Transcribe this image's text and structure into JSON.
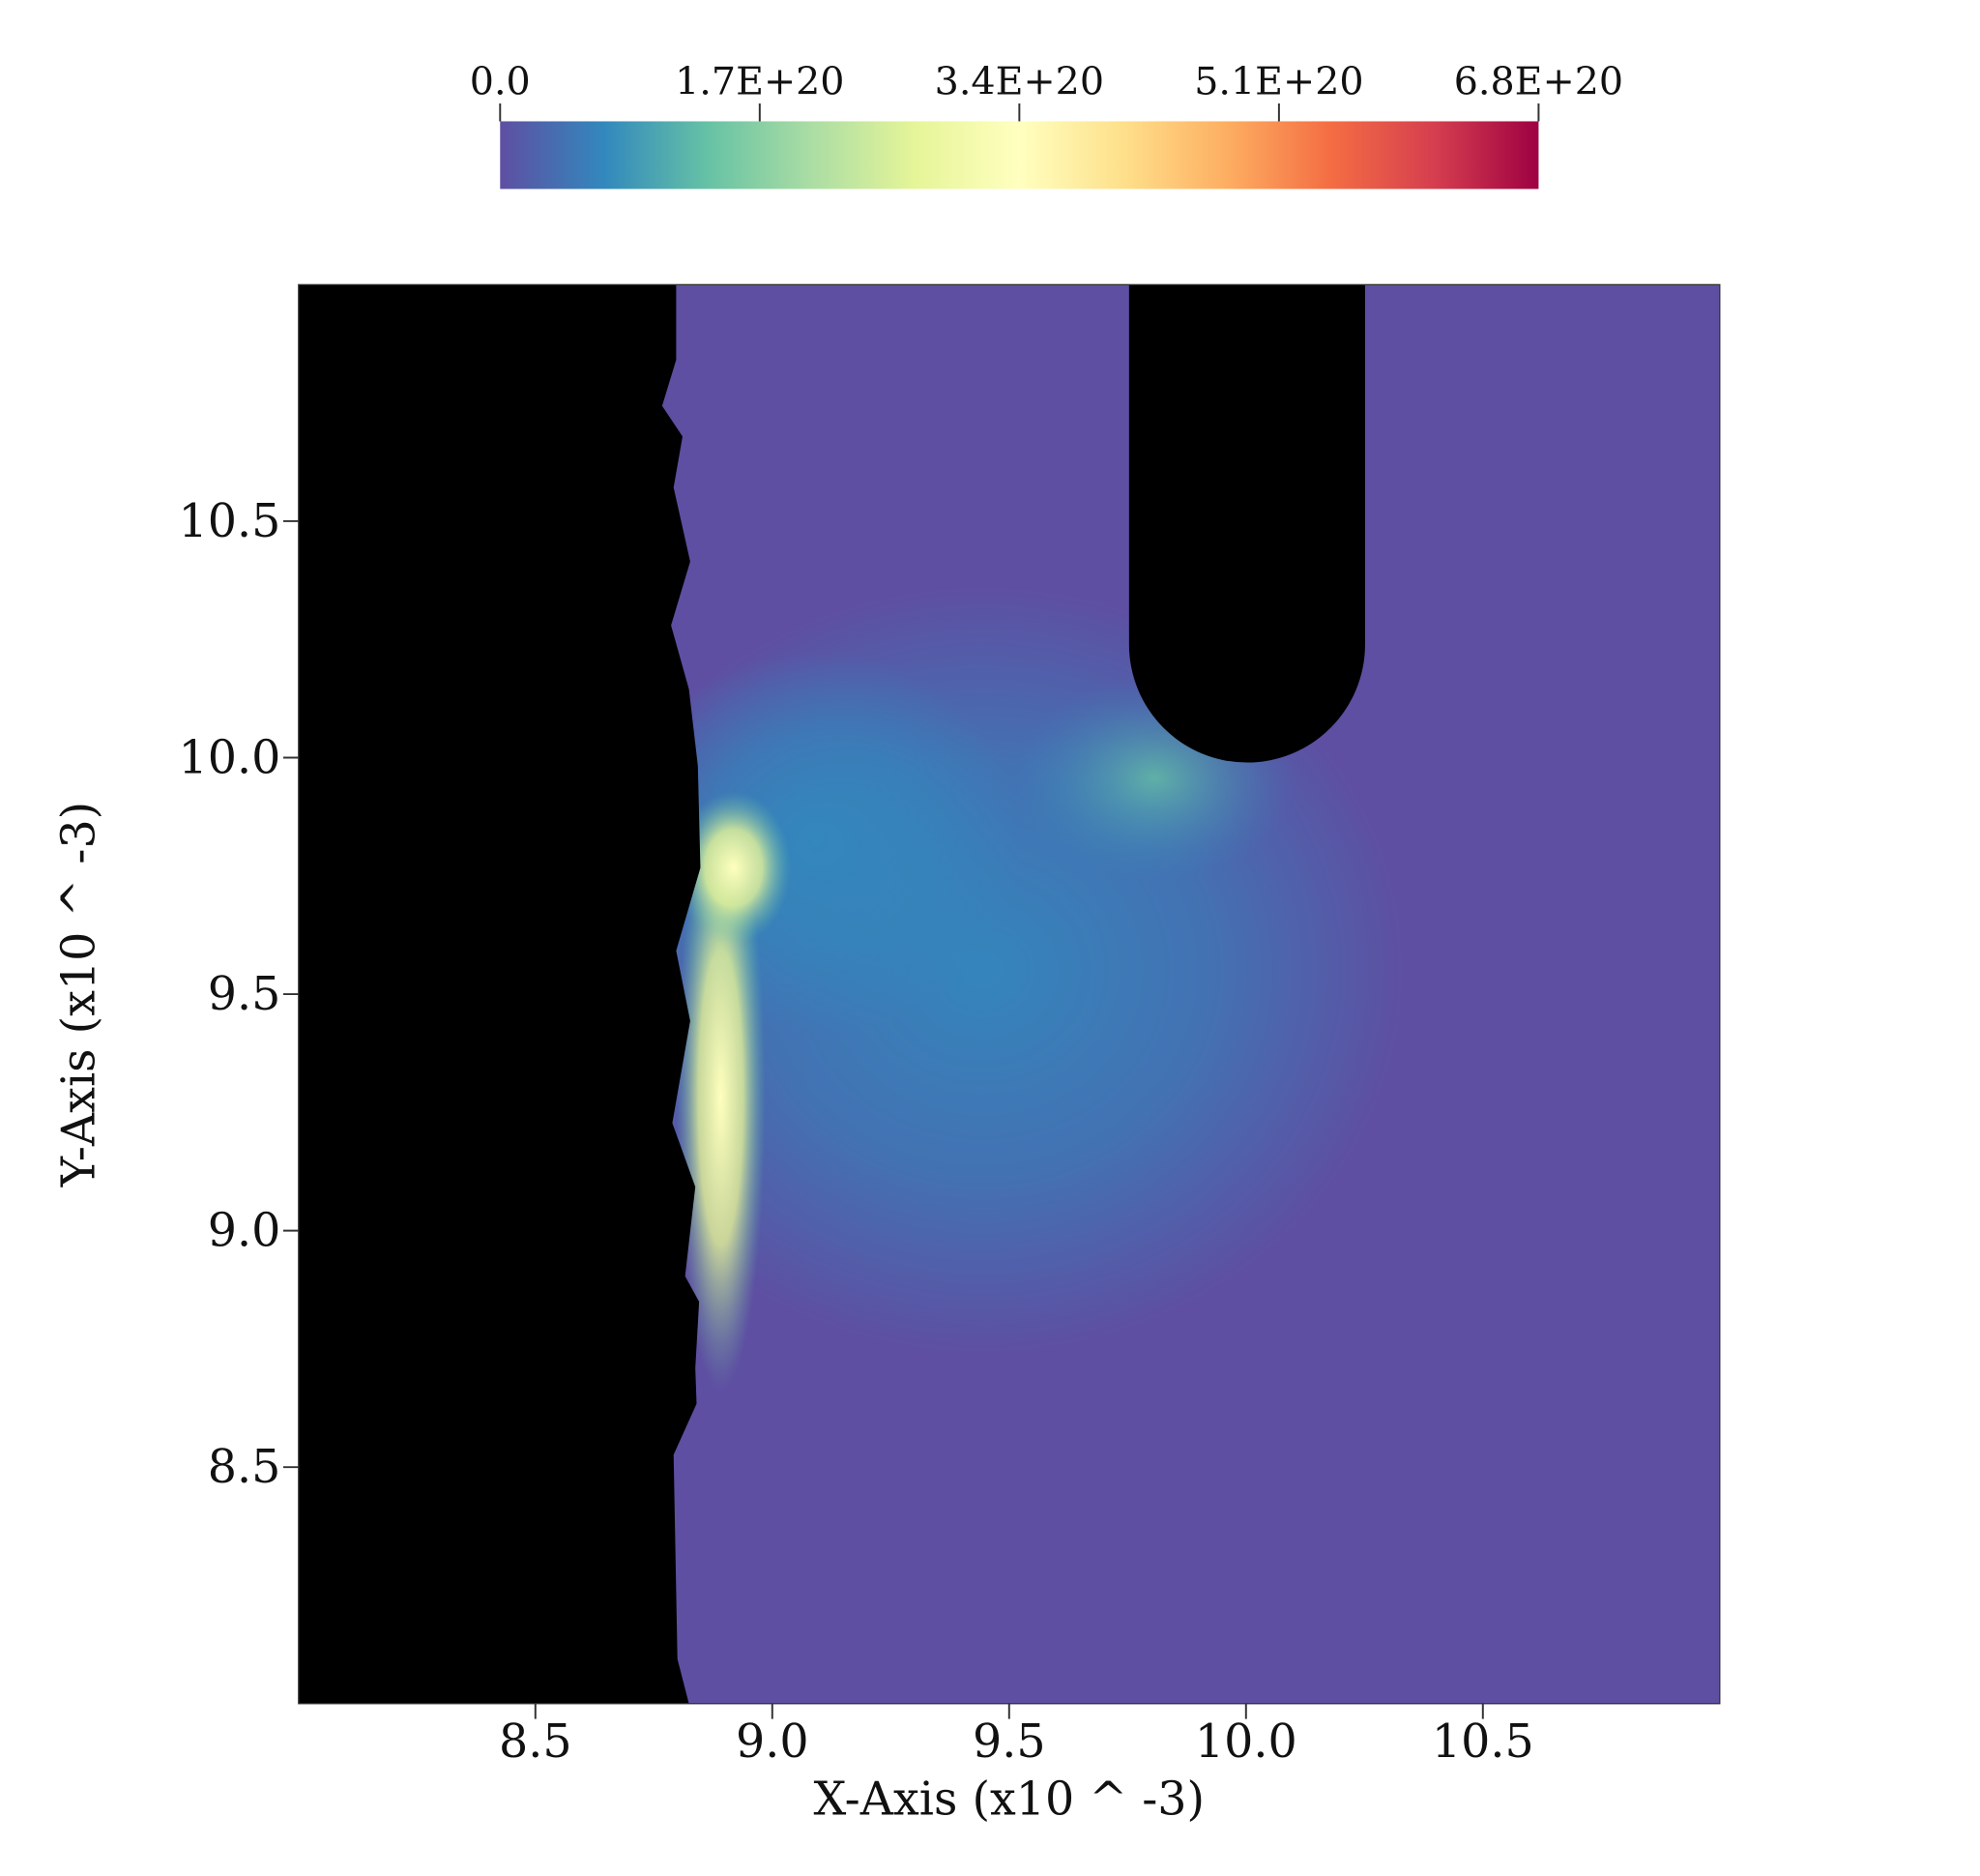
{
  "chart_data": {
    "type": "heatmap",
    "xlabel": "X-Axis (x10 ^ -3)",
    "ylabel": "Y-Axis (x10 ^ -3)",
    "xlim": [
      8.0,
      11.0
    ],
    "ylim": [
      8.0,
      11.0
    ],
    "xticks": [
      8.5,
      {
        "value": 9,
        "label": "9.0"
      },
      9.5,
      {
        "value": 10,
        "label": "10.0"
      },
      10.5
    ],
    "yticks": [
      8.5,
      {
        "value": 9,
        "label": "9.0"
      },
      9.5,
      {
        "value": 10,
        "label": "10.0"
      },
      10.5
    ],
    "colorbar": {
      "clim": [
        0,
        6.8e+20
      ],
      "ticks": [
        {
          "value": 0,
          "label": "0.0"
        },
        {
          "value": 1.7e+20,
          "label": "1.7E+20"
        },
        {
          "value": 3.4e+20,
          "label": "3.4E+20"
        },
        {
          "value": 5.1e+20,
          "label": "5.1E+20"
        },
        {
          "value": 6.8e+20,
          "label": "6.8E+20"
        }
      ],
      "colormap": [
        "#5e4fa2",
        "#3288bd",
        "#66c2a5",
        "#abdda4",
        "#e6f598",
        "#ffffbf",
        "#fee08b",
        "#fdae61",
        "#f46d43",
        "#d53e4f",
        "#9e0142"
      ]
    }
  }
}
